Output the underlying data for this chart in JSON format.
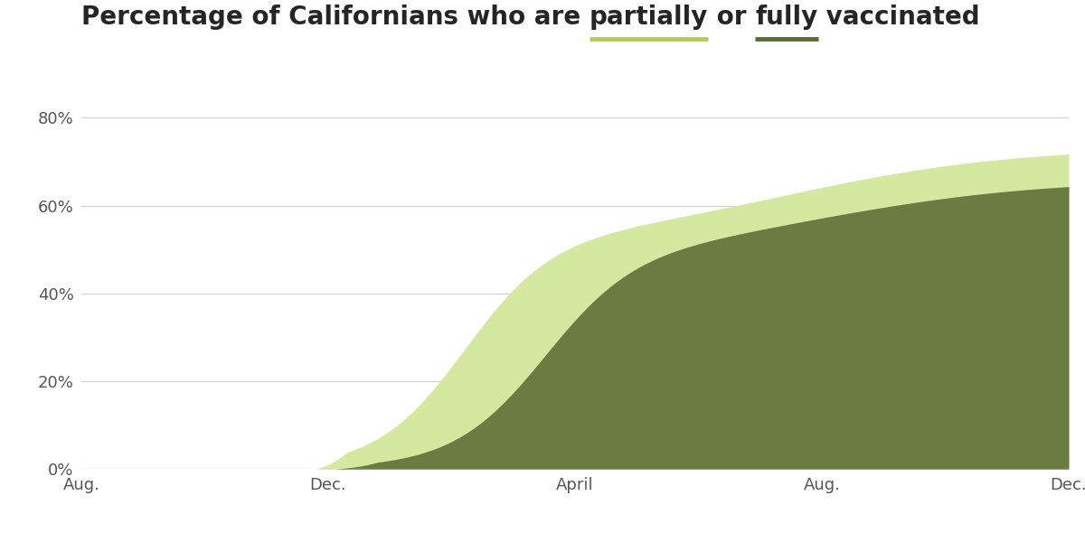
{
  "color_partial": "#d4e8a0",
  "color_full": "#6b7c42",
  "background_color": "#ffffff",
  "ylim": [
    0,
    0.85
  ],
  "yticks": [
    0.0,
    0.2,
    0.4,
    0.6,
    0.8
  ],
  "ytick_labels": [
    "0%",
    "20%",
    "40%",
    "60%",
    "80%"
  ],
  "xtick_labels": [
    "Aug.",
    "Dec.",
    "April",
    "Aug.",
    "Dec."
  ],
  "xtick_positions": [
    0,
    4,
    8,
    12,
    16
  ],
  "grid_color": "#d0d0d0",
  "axis_color": "#cccccc",
  "tick_color": "#555555",
  "title_fontsize": 20,
  "tick_fontsize": 13,
  "partial_final": 0.734,
  "full_final": 0.661,
  "title_segments": [
    {
      "text": "Percentage of Californians who are ",
      "underline": false,
      "ul_color": null
    },
    {
      "text": "partially",
      "underline": true,
      "ul_color": "#b8cc50"
    },
    {
      "text": " or ",
      "underline": false,
      "ul_color": null
    },
    {
      "text": "fully",
      "underline": true,
      "ul_color": "#5a6e2a"
    },
    {
      "text": " vaccinated",
      "underline": false,
      "ul_color": null
    }
  ]
}
